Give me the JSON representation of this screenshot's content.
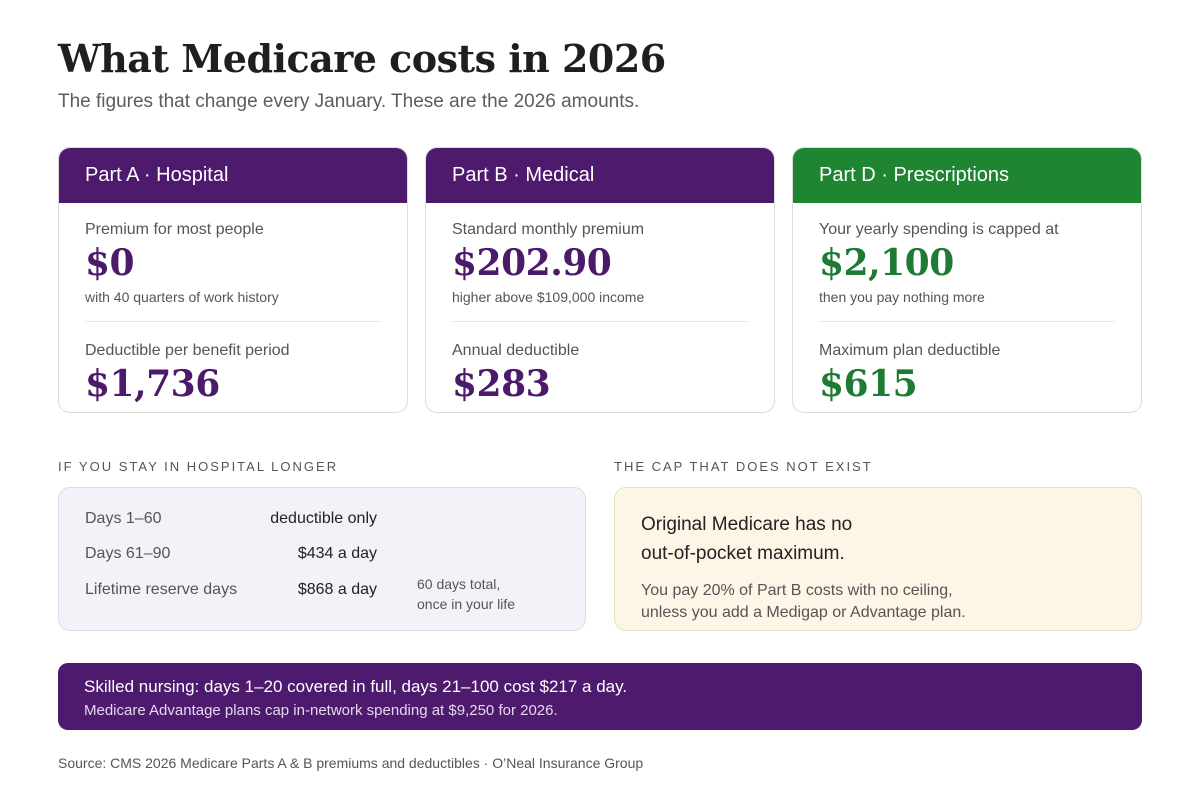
{
  "header": {
    "title": "What Medicare costs in 2026",
    "subtitle": "The figures that change every January. These are the 2026 amounts."
  },
  "cards": [
    {
      "title": "Part A · Hospital",
      "label1": "Premium for most people",
      "value1": "$0",
      "note1": "with 40 quarters of work history",
      "label2": "Deductible per benefit period",
      "value2": "$1,736",
      "accent": "#4d1a6e"
    },
    {
      "title": "Part B · Medical",
      "label1": "Standard monthly premium",
      "value1": "$202.90",
      "note1": "higher above $109,000 income",
      "label2": "Annual deductible",
      "value2": "$283",
      "accent": "#4d1a6e"
    },
    {
      "title": "Part D · Prescriptions",
      "label1": "Your yearly spending is capped at",
      "value1": "$2,100",
      "note1": "then you pay nothing more",
      "label2": "Maximum plan deductible",
      "value2": "$615",
      "accent": "#1f8532"
    }
  ],
  "hospital": {
    "label": "IF YOU STAY IN HOSPITAL LONGER",
    "rows": [
      {
        "days": "Days 1–60",
        "value": "deductible only"
      },
      {
        "days": "Days 61–90",
        "value": "$434 a day"
      },
      {
        "days": "Lifetime reserve days",
        "value": "$868 a day",
        "extra_line1": "60 days total,",
        "extra_line2": "once in your life"
      }
    ]
  },
  "cap": {
    "label": "THE CAP THAT DOES NOT EXIST",
    "head_line1": "Original Medicare has no",
    "head_line2": "out-of-pocket maximum.",
    "sub_line1": "You pay 20% of Part B costs with no ceiling,",
    "sub_line2": "unless you add a Medigap or Advantage plan."
  },
  "banner": {
    "main": "Skilled nursing: days 1–20 covered in full, days 21–100 cost $217 a day.",
    "sub": "Medicare Advantage plans cap in-network spending at $9,250 for 2026."
  },
  "footer": {
    "source": "Source: CMS 2026 Medicare Parts A & B premiums and deductibles · O’Neal Insurance Group"
  }
}
